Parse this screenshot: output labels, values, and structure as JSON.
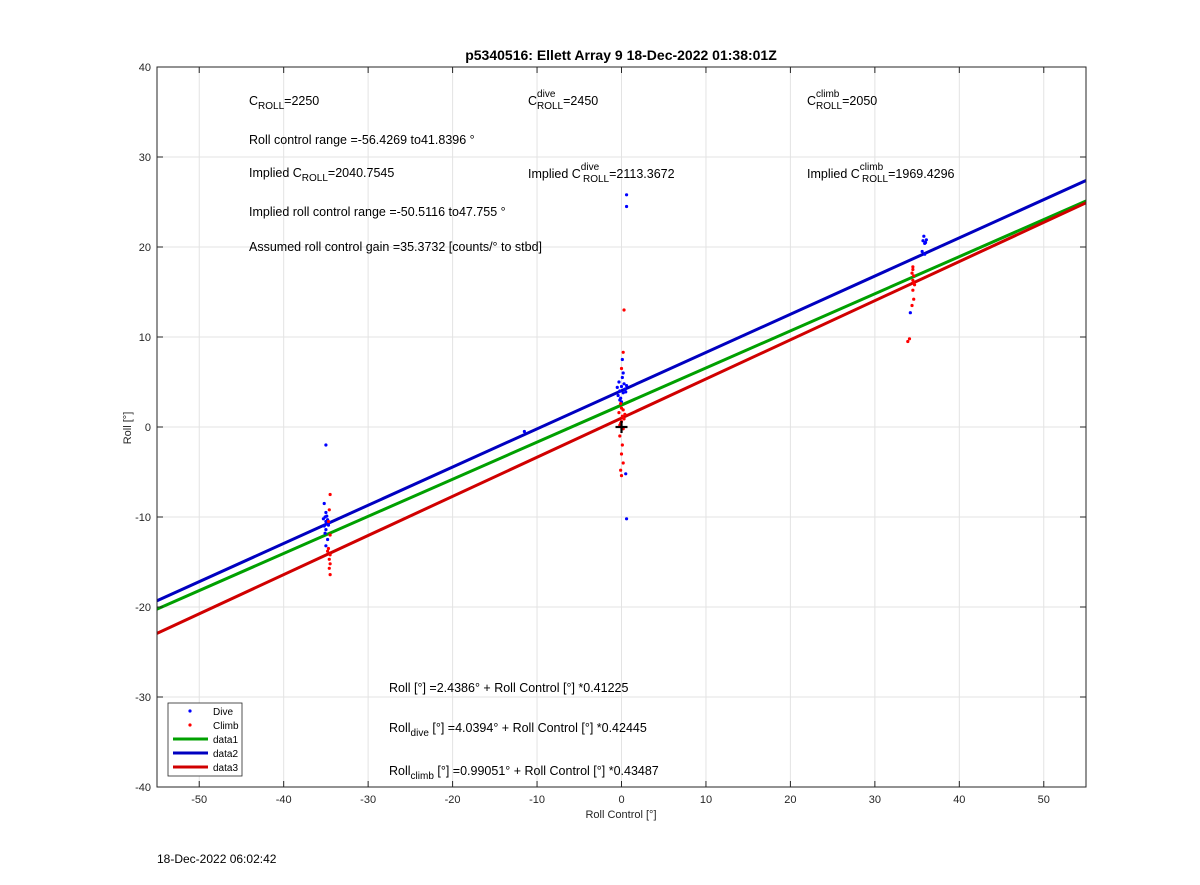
{
  "chart_data": {
    "type": "scatter",
    "title": "p5340516: Ellett Array 9 18-Dec-2022 01:38:01Z",
    "xlabel": "Roll Control [°]",
    "ylabel": "Roll [°]",
    "xlim": [
      -55,
      55
    ],
    "ylim": [
      -40,
      40
    ],
    "xticks": [
      -50,
      -40,
      -30,
      -20,
      -10,
      0,
      10,
      20,
      30,
      40,
      50
    ],
    "yticks": [
      -40,
      -30,
      -20,
      -10,
      0,
      10,
      20,
      30,
      40
    ],
    "grid": true,
    "legend_position": "bottom-left",
    "series": [
      {
        "name": "Dive",
        "kind": "points",
        "color": "#0000ff",
        "points": [
          [
            -35.0,
            -2.0
          ],
          [
            -35.2,
            -8.5
          ],
          [
            -35.0,
            -9.5
          ],
          [
            -35.1,
            -10.0
          ],
          [
            -34.8,
            -10.3
          ],
          [
            -35.0,
            -10.5
          ],
          [
            -34.9,
            -10.7
          ],
          [
            -35.2,
            -11.0
          ],
          [
            -34.7,
            -10.9
          ],
          [
            -35.0,
            -11.4
          ],
          [
            -35.1,
            -11.8
          ],
          [
            -34.8,
            -12.5
          ],
          [
            -35.0,
            -13.2
          ],
          [
            -34.9,
            -9.9
          ],
          [
            -34.6,
            -10.6
          ],
          [
            -35.3,
            -10.2
          ],
          [
            -11.5,
            -0.5
          ],
          [
            -0.4,
            3.5
          ],
          [
            -0.2,
            4.0
          ],
          [
            0.0,
            4.5
          ],
          [
            0.2,
            3.8
          ],
          [
            0.4,
            4.2
          ],
          [
            -0.3,
            5.0
          ],
          [
            0.1,
            5.5
          ],
          [
            0.3,
            4.8
          ],
          [
            -0.1,
            3.2
          ],
          [
            0.2,
            6.0
          ],
          [
            0.5,
            3.9
          ],
          [
            -0.5,
            4.4
          ],
          [
            0.0,
            2.8
          ],
          [
            0.1,
            7.5
          ],
          [
            0.6,
            4.6
          ],
          [
            -0.2,
            3.0
          ],
          [
            0.6,
            25.8
          ],
          [
            0.6,
            24.5
          ],
          [
            0.5,
            -5.2
          ],
          [
            0.6,
            -10.2
          ],
          [
            35.8,
            21.2
          ],
          [
            35.7,
            20.7
          ],
          [
            35.9,
            20.4
          ],
          [
            36.1,
            20.8
          ],
          [
            36.0,
            20.5
          ],
          [
            35.6,
            19.5
          ],
          [
            35.9,
            19.2
          ],
          [
            34.2,
            12.7
          ]
        ]
      },
      {
        "name": "Climb",
        "kind": "points",
        "color": "#ff0000",
        "points": [
          [
            -34.5,
            -7.5
          ],
          [
            -34.6,
            -9.2
          ],
          [
            -34.7,
            -10.5
          ],
          [
            -34.5,
            -12.0
          ],
          [
            -34.7,
            -13.5
          ],
          [
            -34.5,
            -14.2
          ],
          [
            -34.6,
            -14.7
          ],
          [
            -34.5,
            -15.2
          ],
          [
            -34.6,
            -15.7
          ],
          [
            -34.5,
            -16.4
          ],
          [
            -34.8,
            -13.8
          ],
          [
            -0.2,
            0.2
          ],
          [
            0.0,
            0.6
          ],
          [
            0.1,
            1.2
          ],
          [
            -0.3,
            1.6
          ],
          [
            0.2,
            1.9
          ],
          [
            0.3,
            0.9
          ],
          [
            -0.1,
            0.4
          ],
          [
            0.4,
            1.4
          ],
          [
            0.0,
            2.1
          ],
          [
            0.2,
            -0.2
          ],
          [
            -0.2,
            -1.0
          ],
          [
            0.1,
            -2.0
          ],
          [
            0.0,
            -3.0
          ],
          [
            0.2,
            -4.0
          ],
          [
            -0.1,
            -4.8
          ],
          [
            0.0,
            -5.4
          ],
          [
            0.2,
            8.3
          ],
          [
            0.3,
            13.0
          ],
          [
            0.0,
            6.5
          ],
          [
            -0.1,
            2.6
          ],
          [
            34.5,
            17.5
          ],
          [
            34.4,
            17.1
          ],
          [
            34.6,
            16.8
          ],
          [
            34.5,
            16.3
          ],
          [
            34.7,
            15.8
          ],
          [
            34.5,
            15.2
          ],
          [
            34.6,
            14.2
          ],
          [
            34.4,
            13.5
          ],
          [
            34.1,
            9.8
          ],
          [
            33.9,
            9.5
          ],
          [
            34.5,
            17.8
          ],
          [
            34.6,
            16.0
          ]
        ]
      },
      {
        "name": "data1",
        "kind": "line",
        "color": "#00a000",
        "intercept": 2.4386,
        "slope": 0.41225
      },
      {
        "name": "data2",
        "kind": "line",
        "color": "#0000c0",
        "intercept": 4.0394,
        "slope": 0.42445
      },
      {
        "name": "data3",
        "kind": "line",
        "color": "#d00000",
        "intercept": 0.99051,
        "slope": 0.43487
      }
    ],
    "marker": {
      "x": 0,
      "y": 0,
      "color": "#000000",
      "symbol": "+"
    }
  },
  "annotations": {
    "c_roll": {
      "main": "C",
      "sub": "ROLL",
      "rest": "=2250"
    },
    "c_roll_dive": {
      "main": "C",
      "sup": "dive",
      "sub": "ROLL",
      "rest": "=2450"
    },
    "c_roll_climb": {
      "main": "C",
      "sup": "climb",
      "sub": "ROLL",
      "rest": "=2050"
    },
    "range": "Roll control range =-56.4269 to41.8396 °",
    "implied_c_roll": {
      "pre": "Implied C",
      "sub": "ROLL",
      "rest": "=2040.7545"
    },
    "implied_c_roll_dive": {
      "pre": "Implied C",
      "sup": "dive",
      "sub": "ROLL",
      "rest": "=2113.3672"
    },
    "implied_c_roll_climb": {
      "pre": "Implied C",
      "sup": "climb",
      "sub": "ROLL",
      "rest": "=1969.4296"
    },
    "implied_range": "Implied roll control range =-50.5116 to47.755 °",
    "gain": "Assumed roll control gain =35.3732 [counts/° to stbd]",
    "fit_all": {
      "pre": "Roll [°] =2.4386° + Roll Control [°] *0.41225"
    },
    "fit_dive": {
      "pre": "Roll",
      "sub": "dive",
      "rest": " [°] =4.0394° + Roll Control [°] *0.42445"
    },
    "fit_climb": {
      "pre": "Roll",
      "sub": "climb",
      "rest": " [°] =0.99051° + Roll Control [°] *0.43487"
    }
  },
  "footer": {
    "timestamp": "18-Dec-2022 06:02:42"
  }
}
